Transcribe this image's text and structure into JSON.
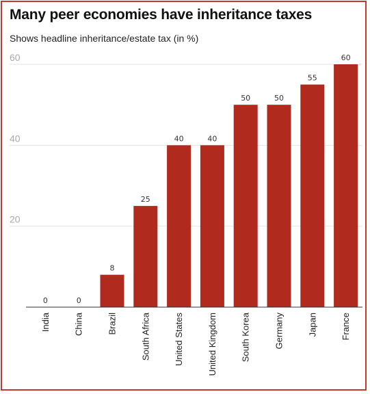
{
  "chart_data": {
    "type": "bar",
    "title": "Many peer economies have inheritance taxes",
    "subtitle": "Shows headline inheritance/estate tax (in %)",
    "xlabel": "",
    "ylabel": "",
    "categories": [
      "India",
      "China",
      "Brazil",
      "South Africa",
      "United States",
      "United Kingdom",
      "South Korea",
      "Germany",
      "Japan",
      "France"
    ],
    "values": [
      0,
      0,
      8,
      25,
      40,
      40,
      50,
      50,
      55,
      60
    ],
    "data_labels": [
      "0",
      "0",
      "8",
      "25",
      "40",
      "40",
      "50",
      "50",
      "55",
      "60"
    ],
    "ylim": [
      0,
      60
    ],
    "y_ticks": [
      "20",
      "40",
      "60"
    ],
    "grid": true,
    "bar_color": "#b02a1e",
    "frame_color": "#c0392b"
  }
}
